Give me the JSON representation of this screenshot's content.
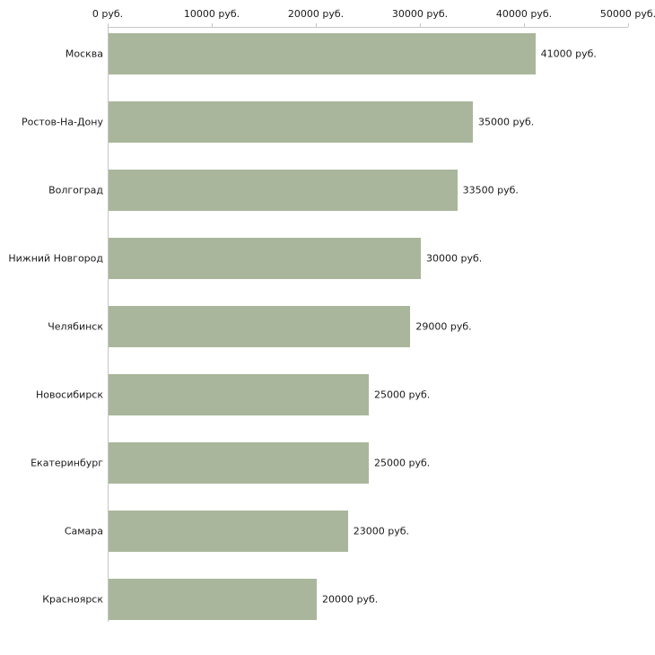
{
  "chart_data": {
    "type": "bar",
    "orientation": "horizontal",
    "title": "",
    "xlabel": "",
    "ylabel": "",
    "categories": [
      "Москва",
      "Ростов-На-Дону",
      "Волгоград",
      "Нижний Новгород",
      "Челябинск",
      "Новосибирск",
      "Екатеринбург",
      "Самара",
      "Красноярск"
    ],
    "values": [
      41000,
      35000,
      33500,
      30000,
      29000,
      25000,
      25000,
      23000,
      20000
    ],
    "value_labels": [
      "41000 руб.",
      "35000 руб.",
      "33500 руб.",
      "30000 руб.",
      "29000 руб.",
      "25000 руб.",
      "25000 руб.",
      "23000 руб.",
      "20000 руб."
    ],
    "x_ticks": [
      0,
      10000,
      20000,
      30000,
      40000,
      50000
    ],
    "x_tick_labels": [
      "0 руб.",
      "10000 руб.",
      "20000 руб.",
      "30000 руб.",
      "40000 руб.",
      "50000 руб."
    ],
    "xlim": [
      0,
      50000
    ],
    "grid": false,
    "legend": "none",
    "colors": {
      "bar_fill": "#aab69b",
      "axis_line": "#c6c6c6",
      "text": "#1a1a1a",
      "background": "#ffffff"
    }
  }
}
